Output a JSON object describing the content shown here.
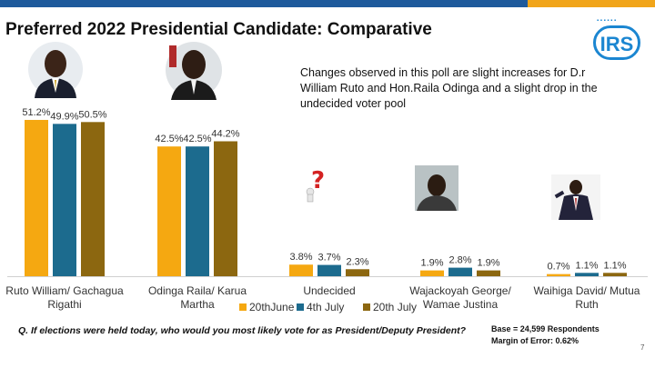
{
  "slide": {
    "title": "Preferred 2022 Presidential Candidate: Comparative",
    "logo": "IRS",
    "note": "Changes observed in this poll are slight increases for D.r William Ruto and Hon.Raila Odinga and a slight drop in the undecided voter pool",
    "question": "Q. If elections were held today, who would you most likely vote for as President/Deputy President?",
    "base": "Base = 24,599 Respondents",
    "margin": "Margin of Error: 0.62%",
    "page": "7"
  },
  "colors": {
    "accent_blue": "#1e5a9c",
    "accent_orange": "#f1a51a"
  },
  "chart_data": {
    "type": "bar",
    "title": "",
    "xlabel": "",
    "ylabel": "",
    "categories": [
      [
        "Ruto William/ Gachagua",
        "Rigathi"
      ],
      [
        "Odinga Raila/ Karua",
        "Martha"
      ],
      [
        "Undecided"
      ],
      [
        "Wajackoyah George/",
        "Wamae Justina"
      ],
      [
        "Waihiga David/ Mutua",
        "Ruth"
      ]
    ],
    "series": [
      {
        "name": "20thJune",
        "color": "#f5a811",
        "values": [
          51.2,
          42.5,
          3.8,
          1.9,
          0.7
        ],
        "labels": [
          "51.2%",
          "42.5%",
          "3.8%",
          "1.9%",
          "0.7%"
        ]
      },
      {
        "name": "4th July",
        "color": "#1c6b8e",
        "values": [
          49.9,
          42.5,
          3.7,
          2.8,
          1.1
        ],
        "labels": [
          "49.9%",
          "42.5%",
          "3.7%",
          "2.8%",
          "1.1%"
        ]
      },
      {
        "name": "20th July",
        "color": "#8c6710",
        "values": [
          50.5,
          44.2,
          2.3,
          1.9,
          1.1
        ],
        "labels": [
          "50.5%",
          "44.2%",
          "2.3%",
          "1.9%",
          "1.1%"
        ]
      }
    ],
    "legend_position": "bottom",
    "grid": false
  }
}
